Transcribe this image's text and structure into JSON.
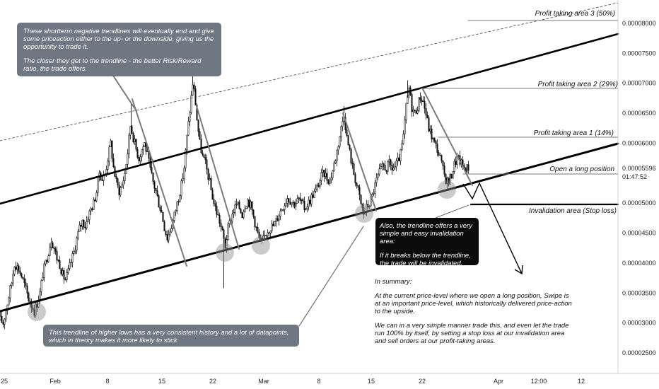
{
  "chart_data": {
    "type": "candlestick",
    "x_tick_labels": [
      "25",
      "Feb",
      "8",
      "15",
      "22",
      "Mar",
      "8",
      "15",
      "22",
      "Apr",
      "12:00",
      "12"
    ],
    "y_tick_labels": [
      "0.00008000",
      "0.00007500",
      "0.00007000",
      "0.00006500",
      "0.00006000",
      "0.00005500",
      "0.00005000",
      "0.00004500",
      "0.00004000",
      "0.00003500",
      "0.00003000",
      "0.00002500"
    ],
    "ylim": [
      2.25e-05,
      8.35e-05
    ],
    "current_price": "0.00005596",
    "countdown": "01:47:52",
    "series_color_up": "#111111",
    "series_color_down": "#111111",
    "close_path": [
      [
        0,
        3.05e-05
      ],
      [
        4,
        3e-05
      ],
      [
        8,
        3.22e-05
      ],
      [
        12,
        3.45e-05
      ],
      [
        16,
        3.68e-05
      ],
      [
        20,
        4e-05
      ],
      [
        23,
        3.95e-05
      ],
      [
        26,
        3.9e-05
      ],
      [
        30,
        3.78e-05
      ],
      [
        35,
        3.6e-05
      ],
      [
        40,
        3.4e-05
      ],
      [
        44,
        3.3e-05
      ],
      [
        48,
        3.2e-05
      ],
      [
        52,
        3.33e-05
      ],
      [
        56,
        3.5e-05
      ],
      [
        60,
        3.82e-05
      ],
      [
        64,
        4e-05
      ],
      [
        68,
        4.2e-05
      ],
      [
        72,
        4.4e-05
      ],
      [
        76,
        4.25e-05
      ],
      [
        80,
        4.08e-05
      ],
      [
        84,
        3.98e-05
      ],
      [
        88,
        3.8e-05
      ],
      [
        92,
        3.72e-05
      ],
      [
        96,
        3.85e-05
      ],
      [
        100,
        4.02e-05
      ],
      [
        104,
        4.18e-05
      ],
      [
        108,
        4.4e-05
      ],
      [
        112,
        4.58e-05
      ],
      [
        116,
        4.7e-05
      ],
      [
        120,
        4.62e-05
      ],
      [
        124,
        4.78e-05
      ],
      [
        128,
        4.9e-05
      ],
      [
        132,
        5e-05
      ],
      [
        136,
        5.2e-05
      ],
      [
        140,
        5.52e-05
      ],
      [
        144,
        5.4e-05
      ],
      [
        148,
        5.48e-05
      ],
      [
        152,
        5.75e-05
      ],
      [
        156,
        6e-05
      ],
      [
        160,
        5.6e-05
      ],
      [
        164,
        5.35e-05
      ],
      [
        168,
        5.2e-05
      ],
      [
        172,
        5.3e-05
      ],
      [
        176,
        5.5e-05
      ],
      [
        180,
        5.85e-05
      ],
      [
        184,
        6.3e-05
      ],
      [
        188,
        6.1e-05
      ],
      [
        192,
        5.9e-05
      ],
      [
        196,
        5.75e-05
      ],
      [
        200,
        5.9e-05
      ],
      [
        204,
        6e-05
      ],
      [
        208,
        5.8e-05
      ],
      [
        212,
        5.55e-05
      ],
      [
        216,
        5.35e-05
      ],
      [
        220,
        5.2e-05
      ],
      [
        224,
        5e-05
      ],
      [
        228,
        4.85e-05
      ],
      [
        232,
        4.6e-05
      ],
      [
        236,
        4.42e-05
      ],
      [
        240,
        4.55e-05
      ],
      [
        244,
        4.7e-05
      ],
      [
        248,
        4.9e-05
      ],
      [
        252,
        5.1e-05
      ],
      [
        256,
        5.3e-05
      ],
      [
        260,
        5.6e-05
      ],
      [
        264,
        6.1e-05
      ],
      [
        268,
        6.55e-05
      ],
      [
        272,
        7e-05
      ],
      [
        275,
        6.8e-05
      ],
      [
        278,
        6.4e-05
      ],
      [
        282,
        6e-05
      ],
      [
        286,
        5.78e-05
      ],
      [
        290,
        5.65e-05
      ],
      [
        294,
        5.45e-05
      ],
      [
        298,
        5.22e-05
      ],
      [
        302,
        5e-05
      ],
      [
        306,
        4.85e-05
      ],
      [
        310,
        4.7e-05
      ],
      [
        314,
        4.5e-05
      ],
      [
        318,
        4.28e-05
      ],
      [
        322,
        4.58e-05
      ],
      [
        326,
        4.75e-05
      ],
      [
        330,
        4.88e-05
      ],
      [
        334,
        4.98e-05
      ],
      [
        338,
        4.92e-05
      ],
      [
        342,
        4.82e-05
      ],
      [
        346,
        4.98e-05
      ],
      [
        350,
        5.05e-05
      ],
      [
        354,
        4.96e-05
      ],
      [
        358,
        4.78e-05
      ],
      [
        362,
        4.58e-05
      ],
      [
        366,
        4.4e-05
      ],
      [
        370,
        4.32e-05
      ],
      [
        374,
        4.45e-05
      ],
      [
        378,
        4.55e-05
      ],
      [
        382,
        4.6e-05
      ],
      [
        386,
        4.62e-05
      ],
      [
        390,
        4.7e-05
      ],
      [
        394,
        4.82e-05
      ],
      [
        398,
        4.92e-05
      ],
      [
        402,
        5e-05
      ],
      [
        406,
        5.1e-05
      ],
      [
        410,
        5.05e-05
      ],
      [
        414,
        5e-05
      ],
      [
        418,
        5.02e-05
      ],
      [
        422,
        5.06e-05
      ],
      [
        426,
        5e-05
      ],
      [
        430,
        4.92e-05
      ],
      [
        434,
        4.98e-05
      ],
      [
        438,
        5.05e-05
      ],
      [
        442,
        5.15e-05
      ],
      [
        446,
        5.2e-05
      ],
      [
        450,
        5.32e-05
      ],
      [
        454,
        5.45e-05
      ],
      [
        458,
        5.5e-05
      ],
      [
        462,
        5.42e-05
      ],
      [
        466,
        5.38e-05
      ],
      [
        470,
        5.55e-05
      ],
      [
        474,
        5.75e-05
      ],
      [
        478,
        6e-05
      ],
      [
        482,
        6.25e-05
      ],
      [
        486,
        6.5e-05
      ],
      [
        490,
        6.1e-05
      ],
      [
        494,
        5.85e-05
      ],
      [
        498,
        5.6e-05
      ],
      [
        502,
        5.4e-05
      ],
      [
        506,
        5.2e-05
      ],
      [
        510,
        4.98e-05
      ],
      [
        514,
        4.82e-05
      ],
      [
        518,
        4.92e-05
      ],
      [
        522,
        5e-05
      ],
      [
        526,
        5.12e-05
      ],
      [
        530,
        5.3e-05
      ],
      [
        534,
        5.45e-05
      ],
      [
        538,
        5.55e-05
      ],
      [
        542,
        5.62e-05
      ],
      [
        546,
        5.58e-05
      ],
      [
        550,
        5.65e-05
      ],
      [
        554,
        5.58e-05
      ],
      [
        558,
        5.6e-05
      ],
      [
        562,
        5.68e-05
      ],
      [
        566,
        5.82e-05
      ],
      [
        570,
        6.1e-05
      ],
      [
        574,
        6.6e-05
      ],
      [
        578,
        6.92e-05
      ],
      [
        582,
        6.6e-05
      ],
      [
        586,
        6.5e-05
      ],
      [
        590,
        6.62e-05
      ],
      [
        594,
        6.78e-05
      ],
      [
        598,
        6.7e-05
      ],
      [
        602,
        6.48e-05
      ],
      [
        606,
        6.25e-05
      ],
      [
        610,
        6.12e-05
      ],
      [
        614,
        6e-05
      ],
      [
        618,
        5.9e-05
      ],
      [
        622,
        5.75e-05
      ],
      [
        626,
        5.55e-05
      ],
      [
        630,
        5.4e-05
      ],
      [
        634,
        5.35e-05
      ],
      [
        638,
        5.48e-05
      ],
      [
        642,
        5.65e-05
      ],
      [
        646,
        5.75e-05
      ],
      [
        650,
        5.7e-05
      ],
      [
        654,
        5.62e-05
      ],
      [
        658,
        5.58e-05
      ],
      [
        662,
        5.6e-05
      ]
    ],
    "spikes": [
      [
        185,
        6.65e-05
      ],
      [
        272,
        7.2e-05
      ],
      [
        316,
        3.58e-05
      ],
      [
        486,
        6.62e-05
      ],
      [
        576,
        7.05e-05
      ]
    ]
  },
  "annotations": {
    "top_note": {
      "p1": "These shortterm negative trendlines will eventually end and give some priceaction either to the up- or the downside, giving us the opportunity to trade it.",
      "p2": "The closer they get to the trendline - the better Risk/Reward ratio, the trade offers."
    },
    "bottom_note": "This trendline of higher lows has a very consistent history and a lot of datapoints, which in theory makes it more likely to stick.",
    "invalidation_note": {
      "p1": "Also, the trendline offers a very simple and easy invalidation area:",
      "p2": "If it breaks below the trendline, the trade will be invalidated."
    },
    "summary": {
      "heading": "In summary:",
      "p1": "At the current price-level where we open a long position, Swipe is at an important price-level, which historically delivered price-action to the upside.",
      "p2": "We can in a very simple manner trade this, and even let the trade run 100% by itself, by setting a stop loss at our invalidation area and sell orders at our profit-taking areas."
    },
    "levels": {
      "pt3": "Profit taking area 3 (50%)",
      "pt2": "Profit taking area 2 (29%)",
      "pt1": "Profit taking area 1 (14%)",
      "open": "Open a long position",
      "stop": "Invalidation area (Stop loss)"
    }
  }
}
